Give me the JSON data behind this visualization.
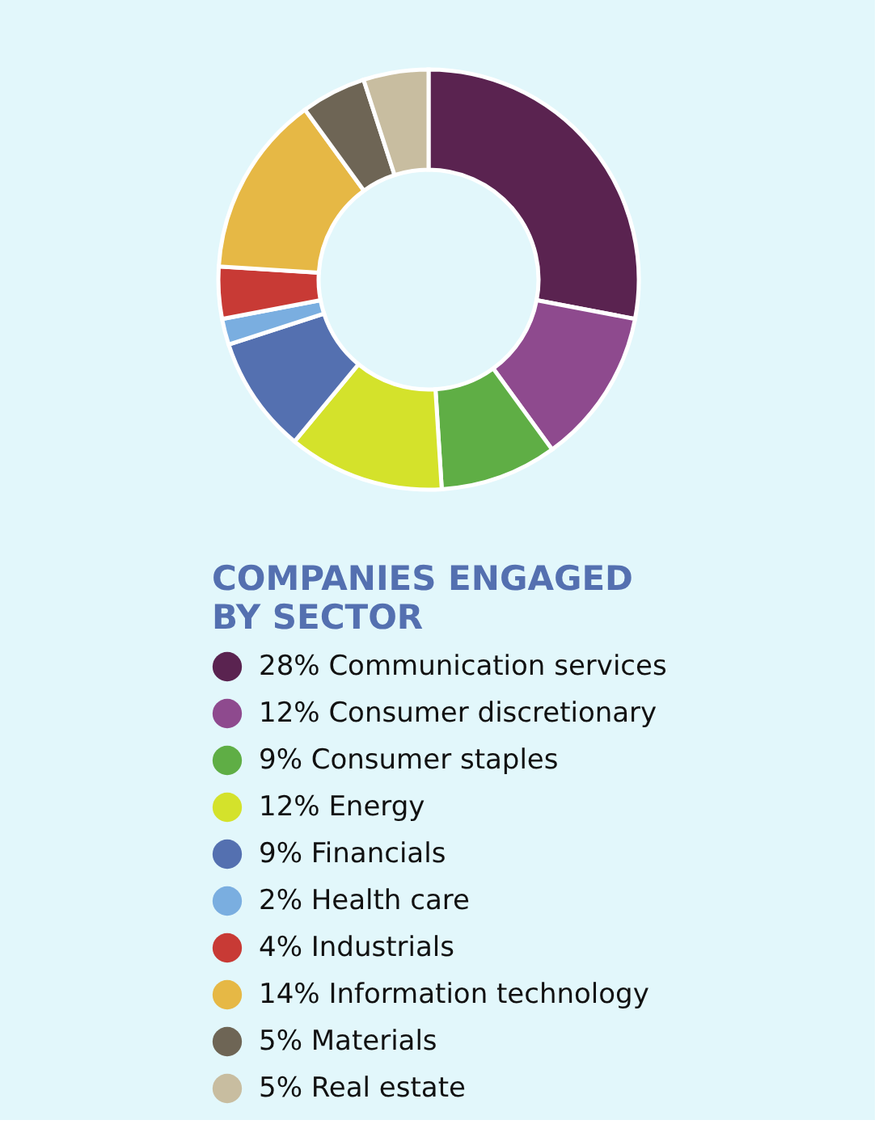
{
  "chart_data": {
    "type": "donut",
    "title": "COMPANIES ENGAGED BY SECTOR",
    "categories": [
      "Communication services",
      "Consumer discretionary",
      "Consumer staples",
      "Energy",
      "Financials",
      "Health care",
      "Industrials",
      "Information technology",
      "Materials",
      "Real estate"
    ],
    "values": [
      28,
      12,
      9,
      12,
      9,
      2,
      4,
      14,
      5,
      5
    ],
    "value_labels": [
      "28%",
      "12%",
      "9%",
      "12%",
      "9%",
      "2%",
      "4%",
      "14%",
      "5%",
      "5%"
    ],
    "colors": [
      "#5a2350",
      "#8e4a8e",
      "#5fae45",
      "#d4e22b",
      "#5470b0",
      "#7aaee0",
      "#c83a35",
      "#e6b845",
      "#6e6555",
      "#c8bda0"
    ],
    "legend": "bottom"
  }
}
